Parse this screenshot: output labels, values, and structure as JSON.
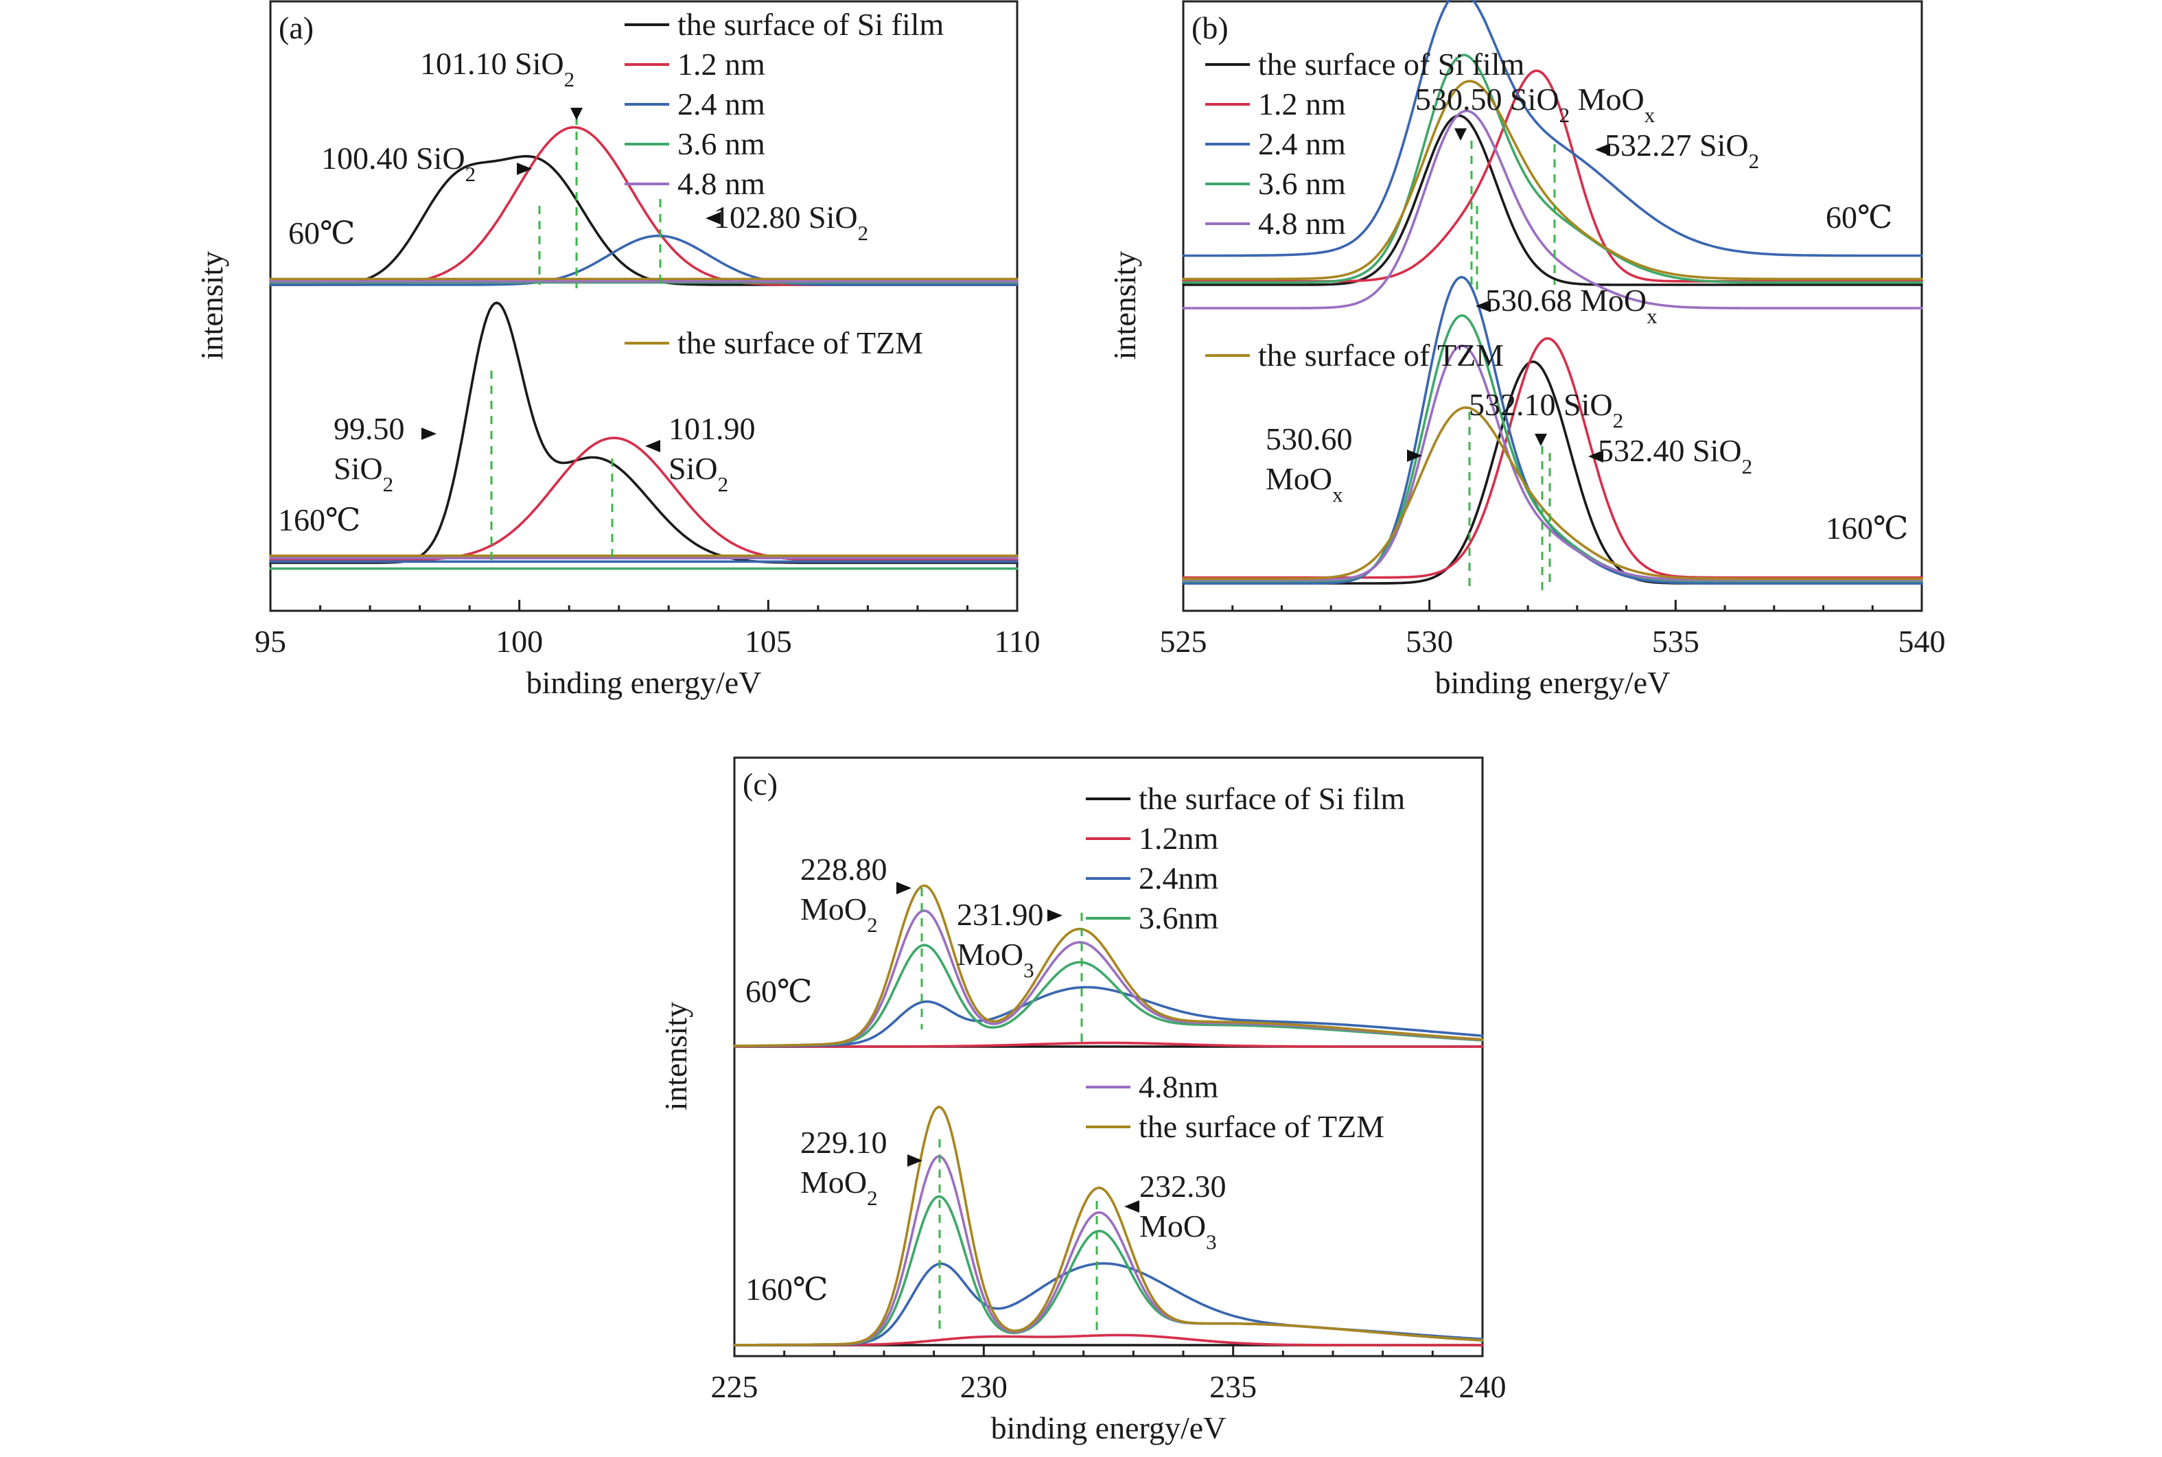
{
  "colors": {
    "si_film": "#1a1a1a",
    "t12": "#d62f4a",
    "t24": "#3a66b0",
    "t36": "#3fa86a",
    "t48": "#9a6fc0",
    "tzm": "#a88620",
    "guide": "#3cb44b"
  },
  "chart_data": [
    {
      "id": "a",
      "type": "line",
      "panel_label": "(a)",
      "xlabel": "binding energy/eV",
      "ylabel": "intensity",
      "xlim": [
        95,
        110
      ],
      "xticks": [
        "95",
        "100",
        "105",
        "110"
      ],
      "groups": [
        {
          "label": "60℃",
          "series": [
            {
              "name": "the surface of Si film",
              "color": "si_film",
              "baseline": 0.0,
              "peaks": [
                {
                  "center": 98.7,
                  "height": 0.78,
                  "width": 0.75
                },
                {
                  "center": 100.4,
                  "height": 1.02,
                  "width": 0.9
                }
              ]
            },
            {
              "name": "1.2 nm",
              "color": "t12",
              "baseline": 0.0,
              "peaks": [
                {
                  "center": 101.1,
                  "height": 1.35,
                  "width": 1.15
                }
              ]
            },
            {
              "name": "2.4 nm",
              "color": "t24",
              "baseline": 0.0,
              "peaks": [
                {
                  "center": 102.8,
                  "height": 0.42,
                  "width": 1.0
                }
              ]
            },
            {
              "name": "3.6 nm",
              "color": "t36",
              "baseline": 0.02,
              "peaks": []
            },
            {
              "name": "4.8 nm",
              "color": "t48",
              "baseline": 0.03,
              "peaks": []
            },
            {
              "name": "the surface of TZM",
              "color": "tzm",
              "baseline": 0.05,
              "peaks": []
            }
          ]
        },
        {
          "label": "160℃",
          "series": [
            {
              "name": "the surface of Si film",
              "color": "si_film",
              "baseline": 0.0,
              "peaks": [
                {
                  "center": 99.5,
                  "height": 2.05,
                  "width": 0.55
                },
                {
                  "center": 101.5,
                  "height": 0.9,
                  "width": 1.1
                }
              ]
            },
            {
              "name": "1.2 nm",
              "color": "t12",
              "baseline": 0.02,
              "peaks": [
                {
                  "center": 101.9,
                  "height": 1.05,
                  "width": 1.2
                }
              ]
            },
            {
              "name": "2.4 nm",
              "color": "t24",
              "baseline": 0.01,
              "peaks": []
            },
            {
              "name": "3.6 nm",
              "color": "t36",
              "baseline": -0.05,
              "peaks": []
            },
            {
              "name": "4.8 nm",
              "color": "t48",
              "baseline": 0.04,
              "peaks": []
            },
            {
              "name": "the surface of TZM",
              "color": "tzm",
              "baseline": 0.06,
              "peaks": []
            }
          ]
        }
      ],
      "legend": [
        {
          "name": "the surface of Si film",
          "color": "si_film"
        },
        {
          "name": "1.2 nm",
          "color": "t12"
        },
        {
          "name": "2.4 nm",
          "color": "t24"
        },
        {
          "name": "3.6 nm",
          "color": "t36"
        },
        {
          "name": "4.8 nm",
          "color": "t48"
        },
        {
          "name": "the surface of TZM",
          "color": "tzm"
        }
      ],
      "annotations": [
        {
          "x": 101.1,
          "lines": [
            "101.10 SiO<sub>2</sub>"
          ]
        },
        {
          "x": 100.4,
          "lines": [
            "100.40 SiO<sub>2</sub>"
          ]
        },
        {
          "x": 102.8,
          "lines": [
            "102.80 SiO<sub>2</sub>"
          ]
        },
        {
          "x": 99.5,
          "lines": [
            "99.50",
            "SiO<sub>2</sub>"
          ]
        },
        {
          "x": 101.9,
          "lines": [
            "101.90",
            "SiO<sub>2</sub>"
          ]
        }
      ]
    },
    {
      "id": "b",
      "type": "line",
      "panel_label": "(b)",
      "xlabel": "binding energy/eV",
      "ylabel": "intensity",
      "xlim": [
        525,
        540
      ],
      "xticks": [
        "525",
        "530",
        "535",
        "540"
      ],
      "groups": [
        {
          "label": "60℃",
          "series": [
            {
              "name": "the surface of Si film",
              "color": "si_film",
              "baseline": 0.0,
              "peaks": [
                {
                  "center": 530.6,
                  "height": 1.45,
                  "width": 0.75
                }
              ]
            },
            {
              "name": "1.2 nm",
              "color": "t12",
              "baseline": 0.03,
              "peaks": [
                {
                  "center": 532.27,
                  "height": 1.65,
                  "width": 0.7
                },
                {
                  "center": 531.0,
                  "height": 0.5,
                  "width": 0.8
                }
              ]
            },
            {
              "name": "2.4 nm",
              "color": "t24",
              "baseline": 0.25,
              "peaks": [
                {
                  "center": 530.5,
                  "height": 1.7,
                  "width": 0.8
                },
                {
                  "center": 532.2,
                  "height": 0.95,
                  "width": 1.6
                }
              ]
            },
            {
              "name": "3.6 nm",
              "color": "t36",
              "baseline": 0.02,
              "peaks": [
                {
                  "center": 530.6,
                  "height": 1.6,
                  "width": 0.75
                },
                {
                  "center": 532.0,
                  "height": 0.6,
                  "width": 1.3
                }
              ]
            },
            {
              "name": "4.8 nm",
              "color": "t48",
              "baseline": -0.2,
              "peaks": [
                {
                  "center": 530.68,
                  "height": 1.55,
                  "width": 0.8
                },
                {
                  "center": 532.2,
                  "height": 0.35,
                  "width": 1.1
                }
              ]
            },
            {
              "name": "the surface of TZM",
              "color": "tzm",
              "baseline": 0.05,
              "peaks": [
                {
                  "center": 530.68,
                  "height": 1.35,
                  "width": 0.85
                },
                {
                  "center": 532.0,
                  "height": 0.55,
                  "width": 1.3
                }
              ]
            }
          ]
        },
        {
          "label": "160℃",
          "series": [
            {
              "name": "the surface of Si film",
              "color": "si_film",
              "baseline": 0.0,
              "peaks": [
                {
                  "center": 532.1,
                  "height": 1.9,
                  "width": 0.75
                }
              ]
            },
            {
              "name": "1.2 nm",
              "color": "t12",
              "baseline": 0.05,
              "peaks": [
                {
                  "center": 532.4,
                  "height": 2.05,
                  "width": 0.8
                }
              ]
            },
            {
              "name": "2.4 nm",
              "color": "t24",
              "baseline": 0.0,
              "peaks": [
                {
                  "center": 530.6,
                  "height": 2.45,
                  "width": 0.72
                },
                {
                  "center": 532.0,
                  "height": 0.45,
                  "width": 1.0
                }
              ]
            },
            {
              "name": "3.6 nm",
              "color": "t36",
              "baseline": 0.02,
              "peaks": [
                {
                  "center": 530.6,
                  "height": 2.1,
                  "width": 0.72
                },
                {
                  "center": 532.0,
                  "height": 0.45,
                  "width": 1.0
                }
              ]
            },
            {
              "name": "4.8 nm",
              "color": "t48",
              "baseline": 0.03,
              "peaks": [
                {
                  "center": 530.6,
                  "height": 1.85,
                  "width": 0.72
                },
                {
                  "center": 532.0,
                  "height": 0.4,
                  "width": 1.0
                }
              ]
            },
            {
              "name": "the surface of TZM",
              "color": "tzm",
              "baseline": 0.04,
              "peaks": [
                {
                  "center": 530.6,
                  "height": 1.25,
                  "width": 0.85
                },
                {
                  "center": 532.0,
                  "height": 0.45,
                  "width": 1.1
                }
              ]
            }
          ]
        }
      ],
      "legend": [
        {
          "name": "the surface of Si film",
          "color": "si_film"
        },
        {
          "name": "1.2 nm",
          "color": "t12"
        },
        {
          "name": "2.4 nm",
          "color": "t24"
        },
        {
          "name": "3.6 nm",
          "color": "t36"
        },
        {
          "name": "4.8 nm",
          "color": "t48"
        },
        {
          "name": "the surface of TZM",
          "color": "tzm"
        }
      ],
      "annotations": [
        {
          "x": 530.5,
          "lines": [
            "530.50 SiO<sub>2</sub> MoO<sub>x</sub>"
          ]
        },
        {
          "x": 532.27,
          "lines": [
            "532.27 SiO<sub>2</sub>"
          ]
        },
        {
          "x": 530.68,
          "lines": [
            "530.68 MoO<sub>x</sub>"
          ]
        },
        {
          "x": 532.1,
          "lines": [
            "532.10 SiO<sub>2</sub>"
          ]
        },
        {
          "x": 530.6,
          "lines": [
            "530.60",
            "MoO<sub>x</sub>"
          ]
        },
        {
          "x": 532.4,
          "lines": [
            "532.40 SiO<sub>2</sub>"
          ]
        }
      ]
    },
    {
      "id": "c",
      "type": "line",
      "panel_label": "(c)",
      "xlabel": "binding energy/eV",
      "ylabel": "intensity",
      "xlim": [
        225,
        240
      ],
      "xticks": [
        "225",
        "230",
        "235",
        "240"
      ],
      "groups": [
        {
          "label": "60℃",
          "series": [
            {
              "name": "the surface of Si film",
              "color": "si_film",
              "baseline": 0.0,
              "peaks": []
            },
            {
              "name": "1.2nm",
              "color": "t12",
              "baseline": 0.0,
              "peaks": [
                {
                  "center": 232.5,
                  "height": 0.06,
                  "width": 1.5
                }
              ]
            },
            {
              "name": "2.4nm",
              "color": "t24",
              "baseline": 0.0,
              "peaks": [
                {
                  "center": 228.8,
                  "height": 0.62,
                  "width": 0.55
                },
                {
                  "center": 231.9,
                  "height": 0.72,
                  "width": 1.3
                },
                {
                  "center": 235.5,
                  "height": 0.4,
                  "width": 3.5
                }
              ]
            },
            {
              "name": "3.6nm",
              "color": "t36",
              "baseline": 0.0,
              "peaks": [
                {
                  "center": 228.8,
                  "height": 1.55,
                  "width": 0.55
                },
                {
                  "center": 231.9,
                  "height": 1.1,
                  "width": 0.75
                },
                {
                  "center": 234.5,
                  "height": 0.35,
                  "width": 3.5
                }
              ]
            },
            {
              "name": "4.8nm",
              "color": "t48",
              "baseline": 0.0,
              "peaks": [
                {
                  "center": 228.8,
                  "height": 2.1,
                  "width": 0.55
                },
                {
                  "center": 231.9,
                  "height": 1.4,
                  "width": 0.75
                },
                {
                  "center": 234.5,
                  "height": 0.38,
                  "width": 3.5
                }
              ]
            },
            {
              "name": "the surface of TZM",
              "color": "tzm",
              "baseline": 0.0,
              "peaks": [
                {
                  "center": 228.8,
                  "height": 2.5,
                  "width": 0.55
                },
                {
                  "center": 231.9,
                  "height": 1.6,
                  "width": 0.75
                },
                {
                  "center": 234.5,
                  "height": 0.4,
                  "width": 3.5
                }
              ]
            }
          ]
        },
        {
          "label": "160℃",
          "series": [
            {
              "name": "the surface of Si film",
              "color": "si_film",
              "baseline": 0.0,
              "peaks": []
            },
            {
              "name": "1.2nm",
              "color": "t12",
              "baseline": 0.0,
              "peaks": [
                {
                  "center": 230.0,
                  "height": 0.12,
                  "width": 1.0
                },
                {
                  "center": 232.8,
                  "height": 0.16,
                  "width": 1.3
                }
              ]
            },
            {
              "name": "2.4nm",
              "color": "t24",
              "baseline": 0.0,
              "peaks": [
                {
                  "center": 229.1,
                  "height": 1.2,
                  "width": 0.55
                },
                {
                  "center": 232.3,
                  "height": 1.15,
                  "width": 1.4
                },
                {
                  "center": 235.5,
                  "height": 0.3,
                  "width": 3.0
                }
              ]
            },
            {
              "name": "3.6nm",
              "color": "t36",
              "baseline": 0.0,
              "peaks": [
                {
                  "center": 229.1,
                  "height": 2.35,
                  "width": 0.52
                },
                {
                  "center": 232.3,
                  "height": 1.6,
                  "width": 0.6
                },
                {
                  "center": 234.8,
                  "height": 0.35,
                  "width": 3.0
                }
              ]
            },
            {
              "name": "4.8nm",
              "color": "t48",
              "baseline": 0.0,
              "peaks": [
                {
                  "center": 229.1,
                  "height": 3.0,
                  "width": 0.52
                },
                {
                  "center": 232.3,
                  "height": 1.9,
                  "width": 0.6
                },
                {
                  "center": 234.8,
                  "height": 0.35,
                  "width": 3.0
                }
              ]
            },
            {
              "name": "the surface of TZM",
              "color": "tzm",
              "baseline": 0.0,
              "peaks": [
                {
                  "center": 229.1,
                  "height": 3.8,
                  "width": 0.52
                },
                {
                  "center": 232.3,
                  "height": 2.3,
                  "width": 0.6
                },
                {
                  "center": 234.8,
                  "height": 0.35,
                  "width": 3.0
                }
              ]
            }
          ]
        }
      ],
      "legend": [
        {
          "name": "the surface of Si film",
          "color": "si_film"
        },
        {
          "name": "1.2nm",
          "color": "t12"
        },
        {
          "name": "2.4nm",
          "color": "t24"
        },
        {
          "name": "3.6nm",
          "color": "t36"
        },
        {
          "name": "4.8nm",
          "color": "t48"
        },
        {
          "name": "the surface of TZM",
          "color": "tzm"
        }
      ],
      "annotations": [
        {
          "x": 228.8,
          "lines": [
            "228.80",
            "MoO<sub>2</sub>"
          ]
        },
        {
          "x": 231.9,
          "lines": [
            "231.90",
            "MoO<sub>3</sub>"
          ]
        },
        {
          "x": 229.1,
          "lines": [
            "229.10",
            "MoO<sub>2</sub>"
          ]
        },
        {
          "x": 232.3,
          "lines": [
            "232.30",
            "MoO<sub>3</sub>"
          ]
        }
      ]
    }
  ]
}
